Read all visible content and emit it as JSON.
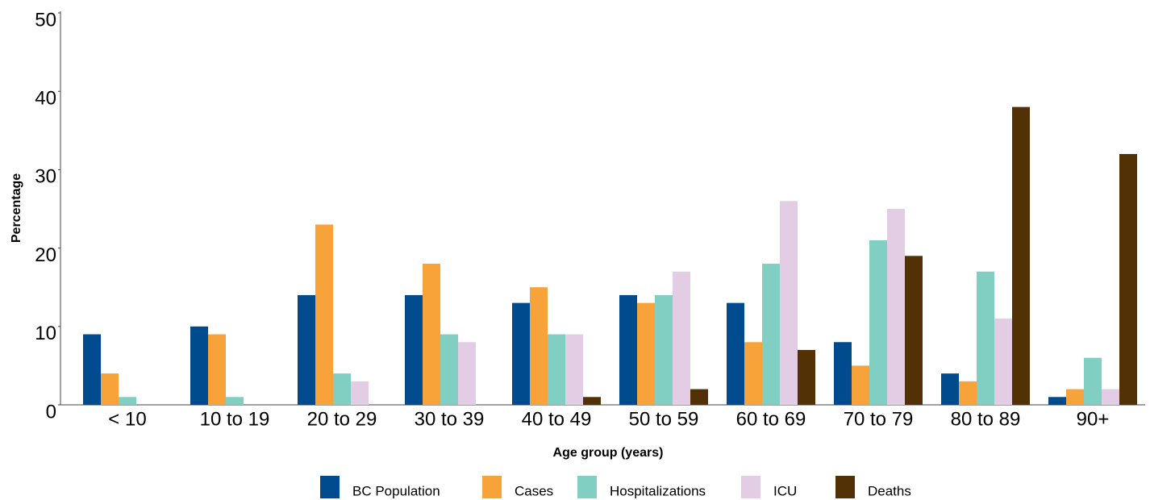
{
  "chart_data": {
    "type": "bar",
    "x_label": "Age group (years)",
    "y_label": "Percentage",
    "categories": [
      "< 10",
      "10 to 19",
      "20 to 29",
      "30 to 39",
      "40 to 49",
      "50 to 59",
      "60 to 69",
      "70 to 79",
      "80 to 89",
      "90+"
    ],
    "series": [
      {
        "name": "BC Population",
        "color": "#004b8d",
        "values": [
          9,
          10,
          14,
          14,
          13,
          14,
          13,
          8,
          4,
          1
        ]
      },
      {
        "name": "Cases",
        "color": "#f8a23a",
        "values": [
          4,
          9,
          23,
          18,
          15,
          13,
          8,
          5,
          3,
          2
        ]
      },
      {
        "name": "Hospitalizations",
        "color": "#80cfc2",
        "values": [
          1,
          1,
          4,
          9,
          9,
          14,
          18,
          21,
          17,
          6
        ]
      },
      {
        "name": "ICU",
        "color": "#e3cde4",
        "values": [
          0,
          0,
          3,
          8,
          9,
          17,
          26,
          25,
          11,
          2
        ]
      },
      {
        "name": "Deaths",
        "color": "#533106",
        "values": [
          0,
          0,
          0,
          0,
          1,
          2,
          7,
          19,
          38,
          32
        ]
      }
    ],
    "ylim": [
      0,
      50
    ],
    "yticks": [
      0,
      10,
      20,
      30,
      40,
      50
    ],
    "grid": false,
    "legend": "bottom"
  }
}
